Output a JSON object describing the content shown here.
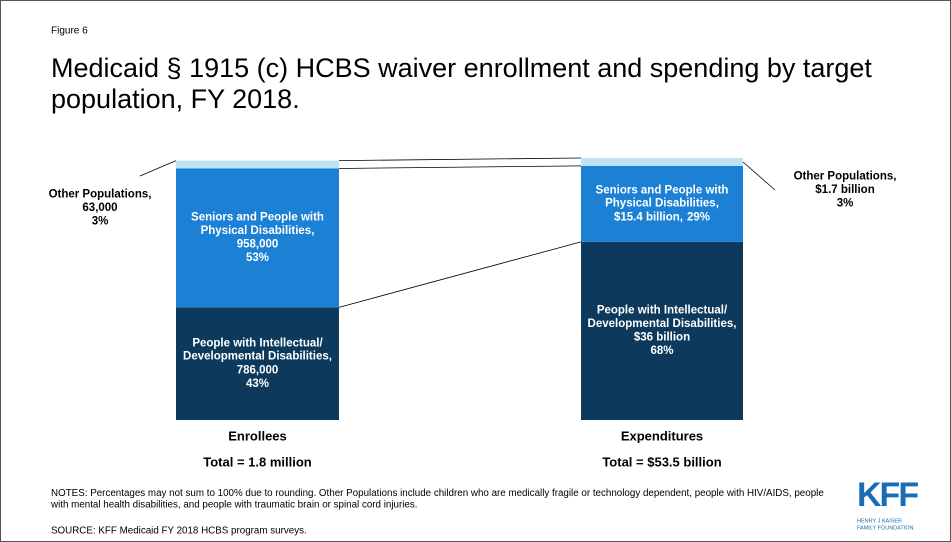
{
  "figure_label": "Figure 6",
  "chart_data": {
    "type": "stacked_bar_100",
    "title": "Medicaid § 1915 (c) HCBS waiver enrollment and spending by target population, FY 2018.",
    "categories": [
      "Enrollees",
      "Expenditures"
    ],
    "totals": [
      1800000,
      53500000000
    ],
    "totals_labels": [
      "Total = 1.8 million",
      "Total = $53.5 billion"
    ],
    "ylim": [
      0,
      100
    ],
    "series": [
      {
        "name": "People with Intellectual/ Developmental Disabilities,",
        "color": "#0d3a5c",
        "values": [
          43,
          68
        ],
        "value_labels": [
          "43%",
          "68%"
        ],
        "amounts": [
          786000,
          36000000000
        ],
        "amount_labels": [
          "786,000",
          "$36 billion"
        ]
      },
      {
        "name": "Seniors and People with Physical Disabilities,",
        "color": "#1c80d4",
        "values": [
          53,
          29
        ],
        "value_labels": [
          "53%",
          "29%"
        ],
        "amounts": [
          958000,
          15400000000
        ],
        "amount_labels": [
          "958,000",
          "$15.4 billion,"
        ]
      },
      {
        "name": "Other Populations,",
        "color": "#bde3f6",
        "values": [
          3,
          3
        ],
        "value_labels": [
          "3%",
          "3%"
        ],
        "amounts": [
          63000,
          1700000000
        ],
        "amount_labels": [
          "63,000",
          "$1.7 billion"
        ]
      }
    ]
  },
  "notes": "NOTES: Percentages may not sum to 100% due to rounding. Other Populations include children who are medically fragile or technology dependent, people with HIV/AIDS, people with mental health disabilities, and people with traumatic brain or spinal cord injuries.",
  "source": "SOURCE: KFF Medicaid FY 2018 HCBS program surveys.",
  "logo": {
    "mark": "KFF",
    "line1": "HENRY J KAISER",
    "line2": "FAMILY FOUNDATION"
  }
}
